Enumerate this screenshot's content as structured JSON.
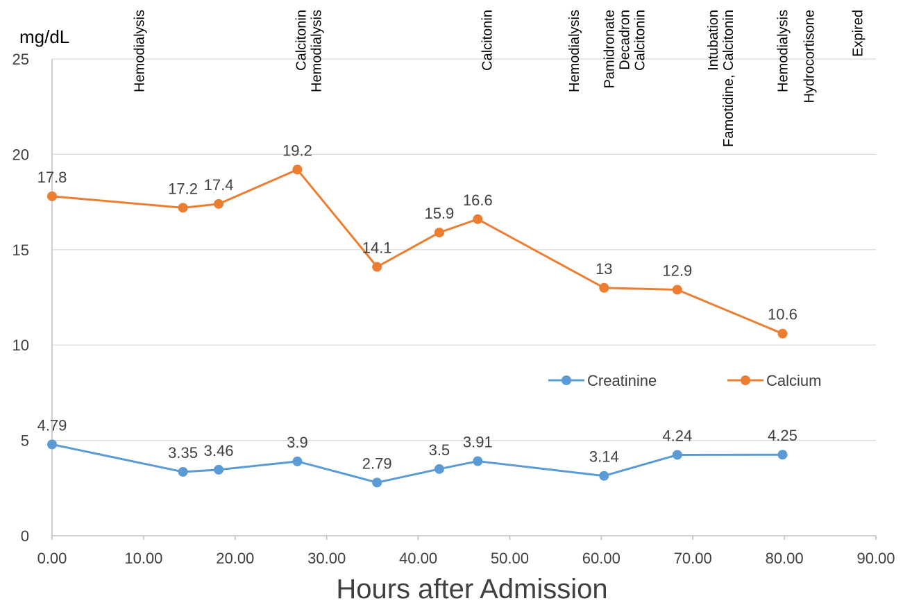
{
  "chart_data": {
    "type": "line",
    "ylabel": "mg/dL",
    "xlabel": "Hours after Admission",
    "xlim": [
      0,
      90
    ],
    "ylim": [
      0,
      25
    ],
    "x_ticks": [
      "0.00",
      "10.00",
      "20.00",
      "30.00",
      "40.00",
      "50.00",
      "60.00",
      "70.00",
      "80.00",
      "90.00"
    ],
    "y_ticks": [
      "0",
      "5",
      "10",
      "15",
      "20",
      "25"
    ],
    "grid": true,
    "legend_position": "right, mid-height",
    "series": [
      {
        "name": "Creatinine",
        "color": "#5B9BD5",
        "x": [
          0,
          14.3,
          18.2,
          26.8,
          35.5,
          42.3,
          46.5,
          60.3,
          68.3,
          79.8
        ],
        "values": [
          4.79,
          3.35,
          3.46,
          3.9,
          2.79,
          3.5,
          3.91,
          3.14,
          4.24,
          4.25
        ],
        "labels": [
          "4.79",
          "3.35",
          "3.46",
          "3.9",
          "2.79",
          "3.5",
          "3.91",
          "3.14",
          "4.24",
          "4.25"
        ]
      },
      {
        "name": "Calcium",
        "color": "#ED7D31",
        "x": [
          0,
          14.3,
          18.2,
          26.8,
          35.5,
          42.3,
          46.5,
          60.3,
          68.3,
          79.8
        ],
        "values": [
          17.8,
          17.2,
          17.4,
          19.2,
          14.1,
          15.9,
          16.6,
          13,
          12.9,
          10.6
        ],
        "labels": [
          "17.8",
          "17.2",
          "17.4",
          "19.2",
          "14.1",
          "15.9",
          "16.6",
          "13",
          "12.9",
          "10.6"
        ]
      }
    ],
    "annotations": [
      {
        "x": 9.5,
        "lines": [
          "Hemodialysis"
        ]
      },
      {
        "x": 28.0,
        "lines": [
          "Calcitonin",
          "Hemodialysis"
        ]
      },
      {
        "x": 47.5,
        "lines": [
          "Calcitonin"
        ]
      },
      {
        "x": 57.0,
        "lines": [
          "Hemodialysis"
        ]
      },
      {
        "x": 62.5,
        "lines": [
          "Pamidronate",
          "Decadron",
          "Calcitonin"
        ]
      },
      {
        "x": 73.0,
        "lines": [
          "Intubation",
          "Famotidine, Calcitonin"
        ]
      },
      {
        "x": 79.8,
        "lines": [
          "Hemodialysis"
        ]
      },
      {
        "x": 82.7,
        "lines": [
          "Hydrocortisone"
        ]
      },
      {
        "x": 88.0,
        "lines": [
          "Expired"
        ]
      }
    ]
  }
}
